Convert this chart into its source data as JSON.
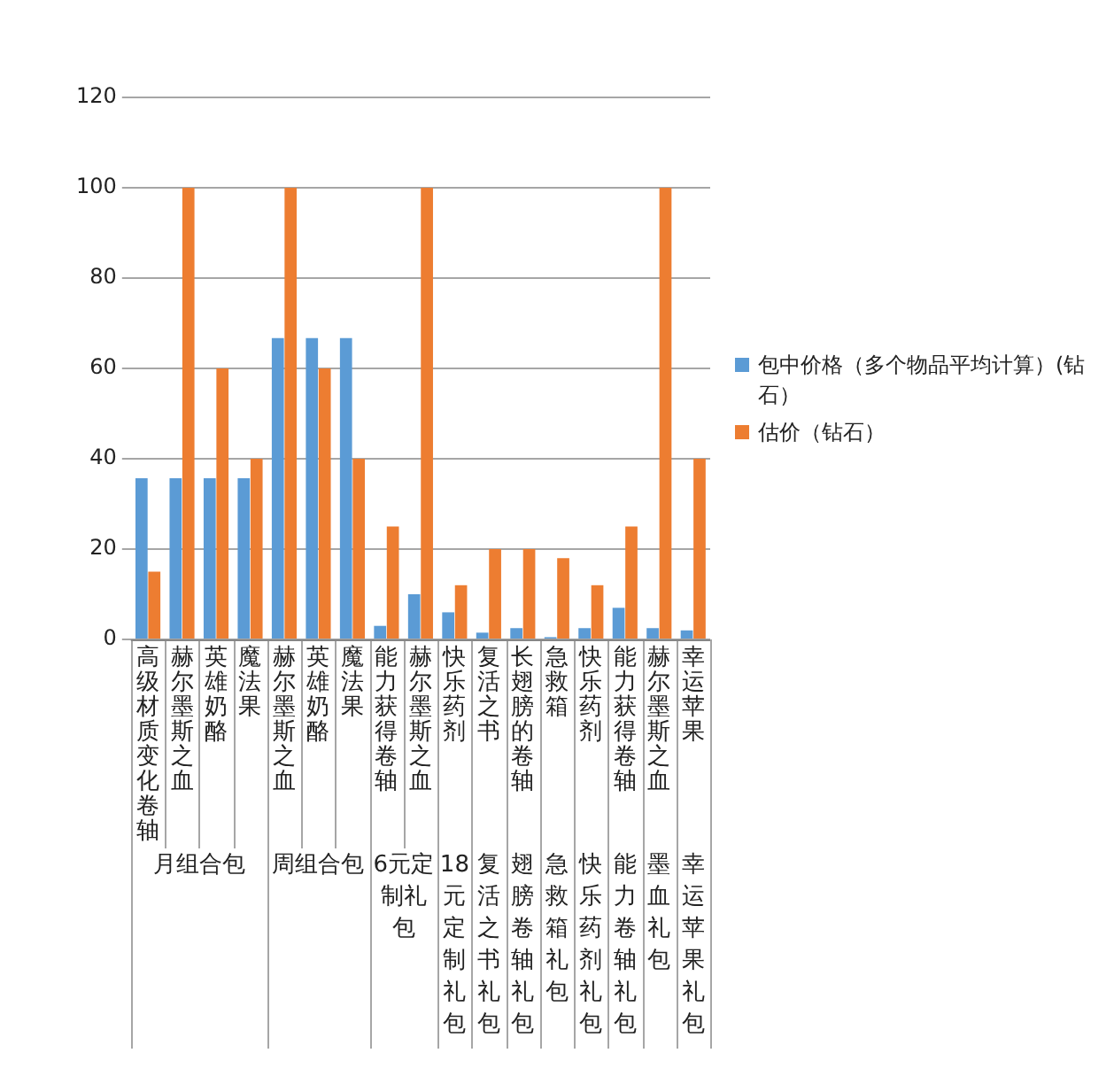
{
  "chart_data": {
    "type": "bar",
    "categories": [
      "高级材质变化卷轴",
      "赫尔墨斯之血",
      "英雄奶酪",
      "魔法果",
      "赫尔墨斯之血",
      "英雄奶酪",
      "魔法果",
      "能力获得卷轴",
      "赫尔墨斯之血",
      "快乐药剂",
      "复活之书",
      "长翅膀的卷轴",
      "急救箱",
      "快乐药剂",
      "能力获得卷轴",
      "赫尔墨斯之血",
      "幸运苹果"
    ],
    "annotations": [
      "月组合包",
      "周组合包",
      "6元定制礼包",
      "18元定制礼包",
      "复活之书礼包",
      "翅膀卷轴礼包",
      "急救箱礼包",
      "快乐药剂礼包",
      "能力卷轴礼包",
      "墨血礼包",
      "幸运苹果礼包"
    ],
    "series": [
      {
        "name": "包中价格（多个物品平均计算）(钻石）",
        "color": "#5b9bd5",
        "values": [
          35.7,
          35.7,
          35.7,
          35.7,
          66.7,
          66.7,
          66.7,
          3,
          10,
          6,
          1.5,
          2.5,
          0.5,
          2.5,
          7,
          2.5,
          2
        ]
      },
      {
        "name": "估价（钻石）",
        "color": "#ed7d31",
        "values": [
          15,
          100,
          60,
          40,
          100,
          60,
          40,
          25,
          100,
          12,
          20,
          20,
          18,
          12,
          25,
          100,
          40
        ]
      }
    ],
    "ylim": [
      0,
      120
    ],
    "yticks": [
      0,
      20,
      40,
      60,
      80,
      100,
      120
    ],
    "grid": "y",
    "legend": "right"
  }
}
